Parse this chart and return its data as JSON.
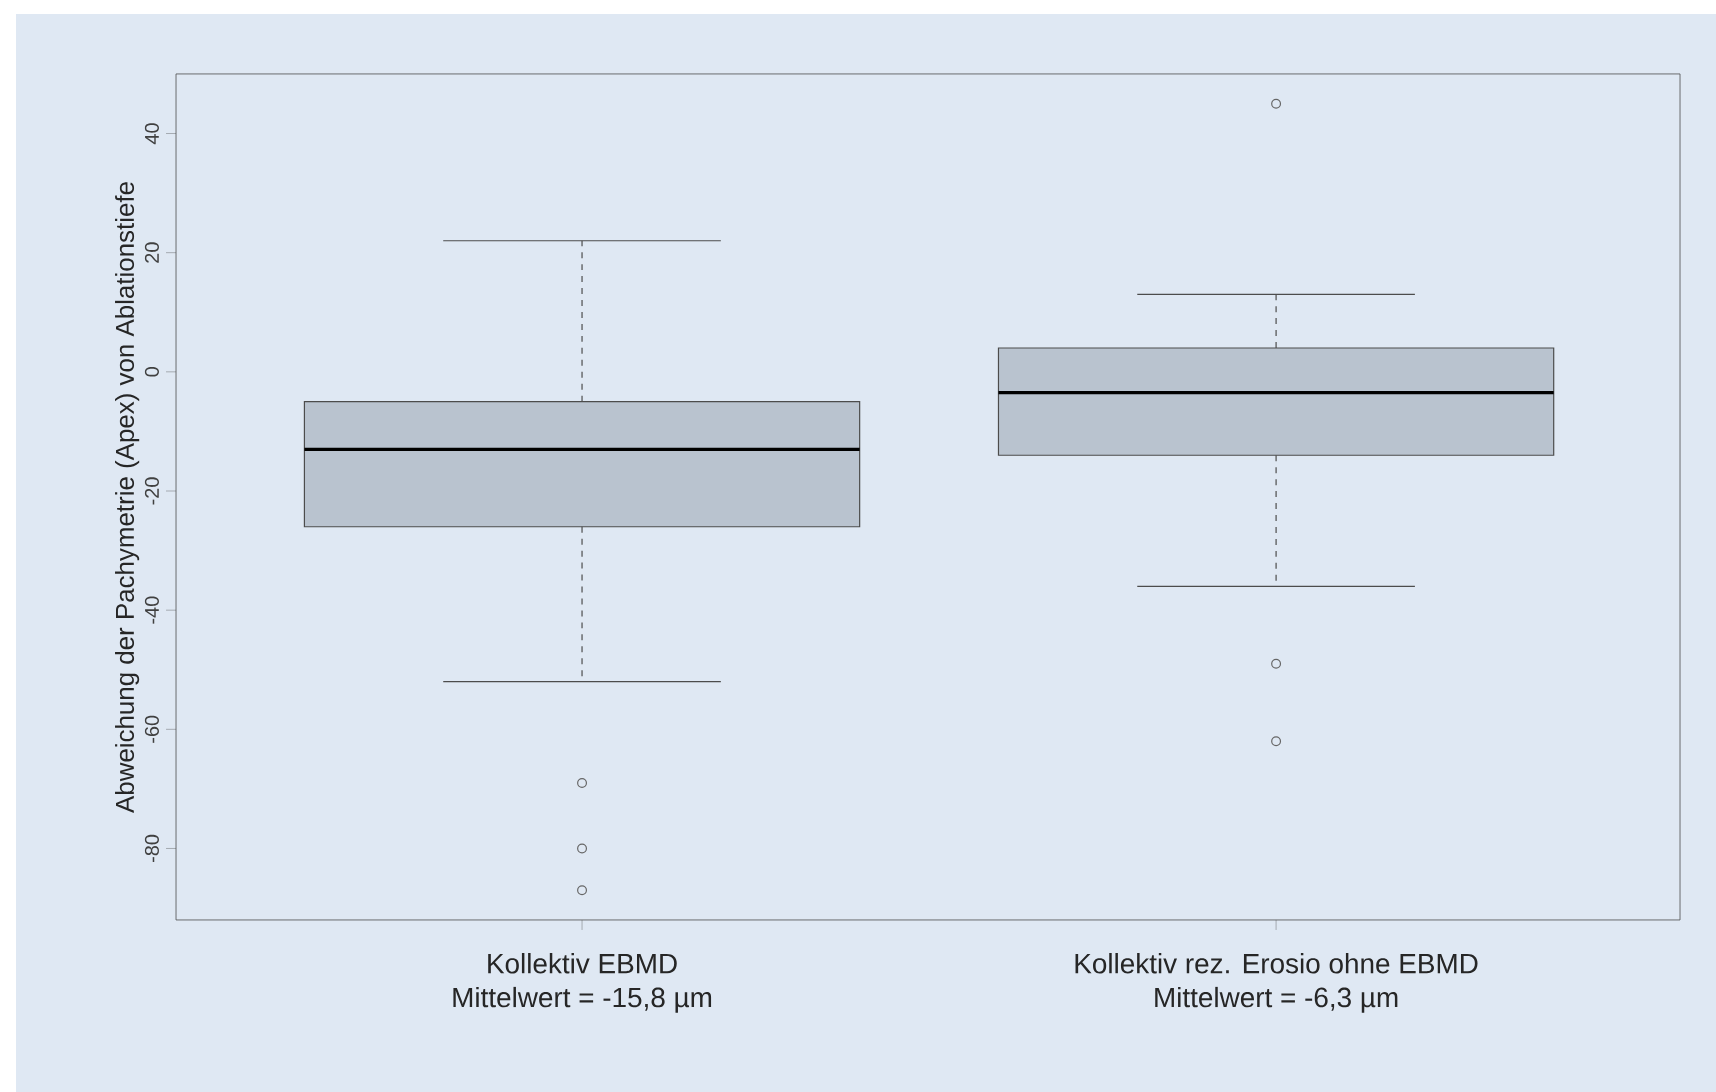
{
  "chart_data": {
    "type": "box",
    "ylabel": "Abweichung der Pachymetrie (Apex) von Ablationstiefe",
    "categories": [
      "Kollektiv EBMD",
      "Kollektiv rez. Erosio ohne EBMD"
    ],
    "annotations": [
      "Mittelwert = -15,8 µm",
      "Mittelwert = -6,3 µm"
    ],
    "boxes": [
      {
        "low": -52,
        "q1": -26,
        "median": -13,
        "q3": -5,
        "high": 22,
        "outliers": [
          -69,
          -80,
          -87
        ]
      },
      {
        "low": -36,
        "q1": -14,
        "median": -3.5,
        "q3": 4,
        "high": 13,
        "outliers": [
          45,
          -49,
          -62
        ]
      }
    ],
    "color": "#b9c3cf",
    "ylim": [
      -92,
      50
    ],
    "yticks": [
      -80,
      -60,
      -40,
      -20,
      0,
      20,
      40
    ]
  }
}
